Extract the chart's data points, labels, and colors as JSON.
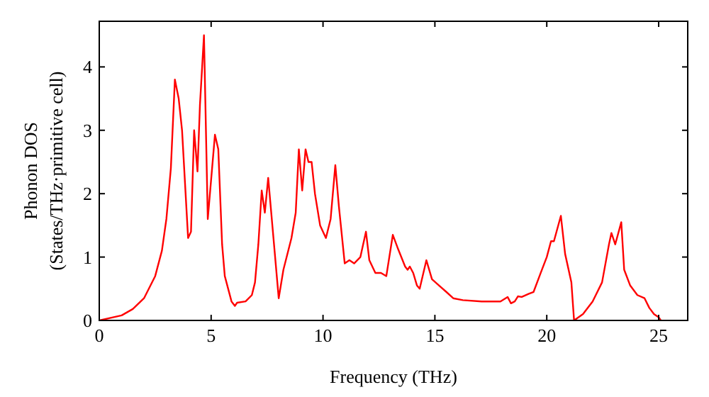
{
  "chart_data": {
    "type": "line",
    "xlabel": "Frequency (THz)",
    "ylabel": "Phonon DOS\n(States/THz·primitive cell)",
    "xlim": [
      0,
      26.3
    ],
    "ylim": [
      0,
      4.72
    ],
    "xticks": [
      0,
      5,
      10,
      15,
      20,
      25
    ],
    "yticks": [
      0,
      1,
      2,
      3,
      4
    ],
    "grid": false,
    "marker": "none",
    "line_style": "solid",
    "series": [
      {
        "color": "#ff0000",
        "x": [
          0,
          1,
          1.5,
          2,
          2.5,
          2.8,
          3.0,
          3.2,
          3.38,
          3.55,
          3.7,
          3.97,
          4.1,
          4.24,
          4.39,
          4.5,
          4.68,
          4.85,
          5.17,
          5.32,
          5.49,
          5.61,
          5.91,
          6.06,
          6.16,
          6.54,
          6.82,
          6.96,
          7.11,
          7.26,
          7.4,
          7.55,
          7.81,
          8.02,
          8.23,
          8.59,
          8.78,
          8.92,
          9.07,
          9.22,
          9.35,
          9.49,
          9.64,
          9.87,
          10.13,
          10.34,
          10.55,
          10.71,
          10.97,
          11.18,
          11.39,
          11.67,
          11.92,
          12.07,
          12.34,
          12.59,
          12.83,
          13.12,
          13.33,
          13.67,
          13.78,
          13.88,
          14.03,
          14.2,
          14.32,
          14.62,
          14.87,
          15.19,
          15.51,
          15.82,
          16.25,
          17.09,
          17.93,
          18.25,
          18.4,
          18.57,
          18.71,
          18.88,
          19.2,
          19.41,
          19.73,
          20.0,
          20.19,
          20.32,
          20.63,
          20.82,
          21.1,
          21.22,
          21.62,
          22.05,
          22.47,
          22.78,
          22.89,
          23.06,
          23.33,
          23.46,
          23.73,
          24.05,
          24.37,
          24.58,
          24.79,
          25.0,
          25.1
        ],
        "values": [
          0,
          0.08,
          0.18,
          0.35,
          0.7,
          1.1,
          1.6,
          2.4,
          3.8,
          3.5,
          3.0,
          1.3,
          1.4,
          3.0,
          2.35,
          3.4,
          4.5,
          1.6,
          2.93,
          2.7,
          1.2,
          0.7,
          0.3,
          0.23,
          0.28,
          0.3,
          0.4,
          0.6,
          1.2,
          2.05,
          1.7,
          2.25,
          1.2,
          0.35,
          0.8,
          1.3,
          1.7,
          2.7,
          2.05,
          2.7,
          2.5,
          2.5,
          2.0,
          1.5,
          1.3,
          1.6,
          2.45,
          1.8,
          0.9,
          0.95,
          0.9,
          1.0,
          1.4,
          0.95,
          0.75,
          0.75,
          0.7,
          1.35,
          1.15,
          0.85,
          0.8,
          0.85,
          0.75,
          0.55,
          0.5,
          0.95,
          0.65,
          0.55,
          0.45,
          0.35,
          0.32,
          0.3,
          0.3,
          0.37,
          0.27,
          0.3,
          0.38,
          0.37,
          0.42,
          0.45,
          0.75,
          1.0,
          1.25,
          1.25,
          1.65,
          1.05,
          0.6,
          0,
          0.1,
          0.3,
          0.6,
          1.2,
          1.38,
          1.2,
          1.55,
          0.8,
          0.55,
          0.4,
          0.35,
          0.2,
          0.1,
          0.05,
          0
        ]
      }
    ]
  }
}
